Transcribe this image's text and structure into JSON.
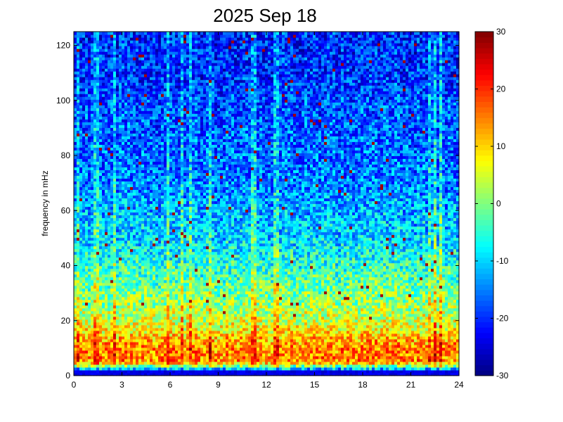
{
  "chart_data": {
    "type": "heatmap",
    "title": "2025 Sep 18",
    "xlabel": "",
    "ylabel": "frequency in mHz",
    "x_range": [
      0,
      24
    ],
    "y_range": [
      0,
      125
    ],
    "x_ticks": [
      0,
      3,
      6,
      9,
      12,
      15,
      18,
      21,
      24
    ],
    "y_ticks": [
      0,
      20,
      40,
      60,
      80,
      100,
      120
    ],
    "colorbar": {
      "range": [
        -30,
        30
      ],
      "ticks": [
        -30,
        -20,
        -10,
        0,
        10,
        20,
        30
      ],
      "colormap": "jet"
    },
    "grid": false,
    "legend": "none",
    "power_by_frequency_band": {
      "freq_mHz": [
        1,
        5,
        10,
        15,
        20,
        30,
        40,
        50,
        60,
        70,
        80,
        90,
        100,
        110,
        120
      ],
      "typical_level": [
        -28,
        15,
        15,
        10,
        5,
        0,
        -5,
        -10,
        -12,
        -15,
        -16,
        -17,
        -18,
        -20,
        -20
      ]
    },
    "vertical_streak_hours": [
      0.3,
      1.4,
      2.6,
      5.8,
      6.7,
      7.3,
      8.5,
      11.2,
      12.6,
      22.1,
      22.5,
      22.9
    ]
  }
}
